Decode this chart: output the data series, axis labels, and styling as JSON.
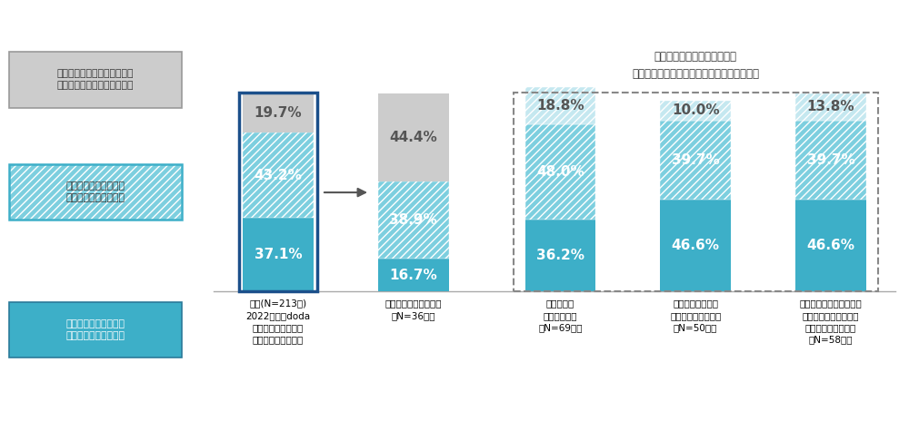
{
  "bars": [
    {
      "label": "全体(N=213人)\n2022年度にdoda\nチャレンジを利用し\nて転職・就職した人",
      "values": [
        37.1,
        43.2,
        19.7
      ],
      "has_border": true
    },
    {
      "label": "あてはまるものはない\n（N=36人）",
      "values": [
        16.7,
        38.9,
        44.4
      ],
      "has_border": false
    },
    {
      "label": "配慮事項が\n明確になった\n（N=69人）",
      "values": [
        36.2,
        48.0,
        18.8
      ],
      "has_border": false
    },
    {
      "label": "配慮事項が明確に\nなり、文章にできる\n（N=50人）",
      "values": [
        46.6,
        39.7,
        10.0
      ],
      "has_border": false
    },
    {
      "label": "配慮事項が明確になり、\n文章にできる。かつ、\n第三者に説明できる\n（N=58人）",
      "values": [
        46.6,
        39.7,
        13.8
      ],
      "has_border": false
    }
  ],
  "color_bottom": "#3DAFC8",
  "color_middle": "#7DCFDF",
  "color_top_gray": "#CCCCCC",
  "color_top_hatch": "#A8D8E8",
  "label_color_bottom": "#FFFFFF",
  "label_color_middle": "#FFFFFF",
  "label_color_top_dark": "#555555",
  "legend": [
    {
      "text": "入社当初の期待や希望は実現\nできなかった就業先だと思う",
      "color": "#CCCCCC",
      "hatch": false,
      "border_color": "#999999"
    },
    {
      "text": "入社当初の期待や希望\n通りの就業先だと思う",
      "color": "#7DCFDF",
      "hatch": true,
      "border_color": "#3DAFC8"
    },
    {
      "text": "入社当初の期待や希望\n以上の就業先だと思う",
      "color": "#3DAFC8",
      "hatch": false,
      "border_color": "#2A7A9A"
    }
  ],
  "annotation": "配慮事項が明確になるほど、\n期待や希望以上の就業先だと思う割合が高い",
  "bar_width": 0.6,
  "positions": [
    0.0,
    1.15,
    2.4,
    3.55,
    4.7
  ]
}
